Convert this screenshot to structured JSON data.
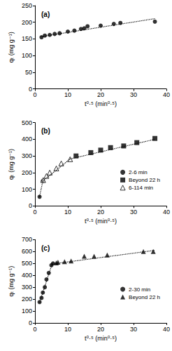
{
  "chart_data": [
    {
      "type": "scatter",
      "title": "(a)",
      "x_label": "t⁰·⁵ (min⁰·⁵)",
      "y_label": "qₜ (mg g⁻¹)",
      "xlim": [
        0,
        40
      ],
      "xticks": [
        0,
        10,
        20,
        30,
        40
      ],
      "ylim": [
        0,
        250
      ],
      "yticks": [
        0,
        50,
        100,
        150,
        200,
        250
      ],
      "grid": false,
      "series": [
        {
          "type": "scatter",
          "marker": "circle",
          "color": "#000000",
          "x": [
            2,
            3,
            4.5,
            6,
            7.5,
            10,
            12,
            14,
            15,
            16,
            20,
            24,
            26,
            36.5
          ],
          "values": [
            155,
            160,
            162,
            165,
            167,
            172,
            175,
            180,
            182,
            188,
            190,
            195,
            198,
            202
          ]
        },
        {
          "type": "line",
          "line_style": "dotted",
          "color": "#000000",
          "x": [
            2,
            36.5
          ],
          "values": [
            157,
            211
          ]
        }
      ]
    },
    {
      "type": "scatter",
      "title": "(b)",
      "x_label": "t⁰·⁵ (min⁰·⁵)",
      "y_label": "qₜ (mg g⁻¹)",
      "xlim": [
        0,
        40
      ],
      "xticks": [
        0,
        10,
        20,
        30,
        40
      ],
      "ylim": [
        0,
        500
      ],
      "yticks": [
        0,
        100,
        200,
        300,
        400,
        500
      ],
      "grid": false,
      "legend": "right",
      "series": [
        {
          "name": "2-6 min",
          "type": "scatter",
          "marker": "circle",
          "color": "#000000",
          "x": [
            1.4,
            2.4
          ],
          "values": [
            55,
            150
          ]
        },
        {
          "name": "Beyond 22 h",
          "type": "scatter",
          "marker": "square",
          "color": "#000000",
          "x": [
            12.5,
            17,
            20,
            23,
            27,
            31,
            36.5
          ],
          "values": [
            300,
            320,
            335,
            350,
            360,
            380,
            405
          ]
        },
        {
          "name": "6-114 min",
          "type": "scatter",
          "marker": "open_triangle",
          "color": "#000000",
          "x": [
            2.5,
            3.5,
            4.5,
            6.5,
            8,
            10.7
          ],
          "values": [
            155,
            180,
            200,
            225,
            255,
            280
          ]
        },
        {
          "type": "line",
          "line_style": "dotted",
          "color": "#000000",
          "x": [
            1.4,
            2.4
          ],
          "values": [
            55,
            150
          ]
        },
        {
          "type": "line",
          "line_style": "dotted",
          "color": "#000000",
          "x": [
            2.4,
            10.7
          ],
          "values": [
            150,
            282
          ]
        },
        {
          "type": "line",
          "line_style": "dotted",
          "color": "#000000",
          "x": [
            10.7,
            36.5
          ],
          "values": [
            282,
            400
          ]
        }
      ]
    },
    {
      "type": "scatter",
      "title": "(c)",
      "x_label": "t⁰·⁵ (min⁰·⁵)",
      "y_label": "qₜ (mg g⁻¹)",
      "xlim": [
        0,
        40
      ],
      "xticks": [
        0,
        10,
        20,
        30,
        40
      ],
      "ylim": [
        0,
        700
      ],
      "yticks": [
        0,
        100,
        200,
        300,
        400,
        500,
        600,
        700
      ],
      "grid": false,
      "legend": "right",
      "series": [
        {
          "name": "2-30 min",
          "type": "scatter",
          "marker": "circle",
          "color": "#000000",
          "x": [
            1.4,
            2,
            2.4,
            3,
            3.5,
            4.2,
            5,
            5.5
          ],
          "values": [
            175,
            210,
            255,
            300,
            365,
            420,
            485,
            500
          ]
        },
        {
          "name": "Beyond 22 h",
          "type": "scatter",
          "marker": "triangle",
          "color": "#000000",
          "x": [
            6.5,
            7,
            9,
            11,
            15,
            18,
            22,
            33,
            36
          ],
          "values": [
            505,
            510,
            515,
            520,
            560,
            560,
            570,
            600,
            600
          ]
        },
        {
          "type": "line",
          "line_style": "dotted",
          "color": "#000000",
          "x": [
            1.4,
            5.2
          ],
          "values": [
            170,
            495
          ]
        },
        {
          "type": "line",
          "line_style": "dotted",
          "color": "#000000",
          "x": [
            5.2,
            36.5
          ],
          "values": [
            495,
            610
          ]
        }
      ]
    }
  ]
}
